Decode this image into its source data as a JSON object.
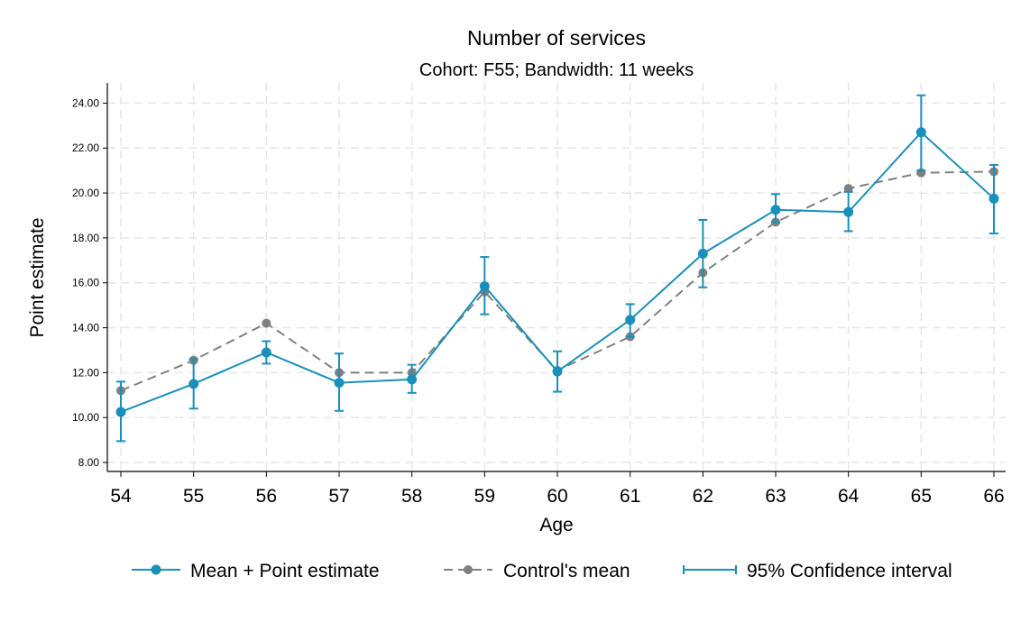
{
  "chart_data": {
    "type": "line",
    "title": "Number of services",
    "subtitle": "Cohort: F55; Bandwidth: 11 weeks",
    "xlabel": "Age",
    "ylabel": "Point estimate",
    "x": [
      54,
      55,
      56,
      57,
      58,
      59,
      60,
      61,
      62,
      63,
      64,
      65,
      66
    ],
    "x_ticks": [
      "54",
      "55",
      "56",
      "57",
      "58",
      "59",
      "60",
      "61",
      "62",
      "63",
      "64",
      "65",
      "66"
    ],
    "y_ticks": [
      "8.00",
      "10.00",
      "12.00",
      "14.00",
      "16.00",
      "18.00",
      "20.00",
      "22.00",
      "24.00"
    ],
    "ylim": [
      7.6,
      24.9
    ],
    "xlim": [
      53.8,
      66.2
    ],
    "grid": true,
    "legend_position": "bottom",
    "series": [
      {
        "name": "Mean + Point estimate",
        "color": "#1a8fba",
        "style": "solid",
        "values": [
          10.25,
          11.5,
          12.9,
          11.55,
          11.7,
          15.85,
          12.05,
          14.35,
          17.3,
          19.25,
          19.15,
          22.7,
          19.75
        ],
        "ci_low": [
          8.95,
          10.4,
          12.4,
          10.3,
          11.1,
          14.6,
          11.15,
          13.6,
          15.8,
          18.7,
          18.3,
          21.0,
          18.2
        ],
        "ci_high": [
          11.6,
          12.6,
          13.4,
          12.85,
          12.35,
          17.15,
          12.95,
          15.05,
          18.8,
          19.95,
          20.05,
          24.35,
          21.25
        ]
      },
      {
        "name": "Control's mean",
        "color": "#808080",
        "style": "dashed",
        "values": [
          11.2,
          12.55,
          14.2,
          12.0,
          12.0,
          15.6,
          12.1,
          13.6,
          16.45,
          18.7,
          20.2,
          20.9,
          20.95
        ]
      }
    ],
    "legend": [
      {
        "label": "Mean + Point estimate",
        "kind": "line-marker",
        "color": "#1a8fba"
      },
      {
        "label": "Control's mean",
        "kind": "dashed-marker",
        "color": "#808080"
      },
      {
        "label": "95% Confidence interval",
        "kind": "capped-line",
        "color": "#1a8fba"
      }
    ]
  }
}
